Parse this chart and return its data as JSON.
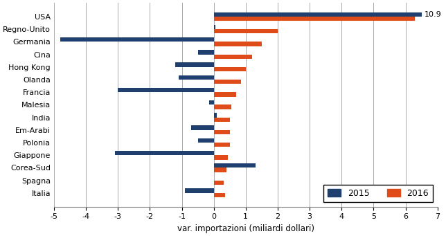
{
  "categories": [
    "USA",
    "Regno-Unito",
    "Germania",
    "Cina",
    "Hong Kong",
    "Olanda",
    "Francia",
    "Malesia",
    "India",
    "Em-Arabi",
    "Polonia",
    "Giappone",
    "Corea-Sud",
    "Spagna",
    "Italia"
  ],
  "values_2015": [
    6.5,
    0.05,
    -4.8,
    -0.5,
    -1.2,
    -1.1,
    -3.0,
    -0.15,
    0.1,
    -0.7,
    -0.5,
    -3.1,
    1.3,
    0.0,
    -0.9
  ],
  "values_2016": [
    6.3,
    2.0,
    1.5,
    1.2,
    1.0,
    0.85,
    0.7,
    0.55,
    0.5,
    0.5,
    0.5,
    0.45,
    0.4,
    0.3,
    0.35
  ],
  "color_2015": "#1F3F6E",
  "color_2016": "#E04B1A",
  "xlabel": "var. importazioni (miliardi dollari)",
  "xlim": [
    -5,
    7
  ],
  "xticks": [
    -5,
    -4,
    -3,
    -2,
    -1,
    0,
    1,
    2,
    3,
    4,
    5,
    6,
    7
  ],
  "annotation": "10.9",
  "bar_height": 0.35,
  "background_color": "#FFFFFF",
  "grid_color": "#AAAAAA",
  "legend_labels": [
    "2015",
    "2016"
  ]
}
